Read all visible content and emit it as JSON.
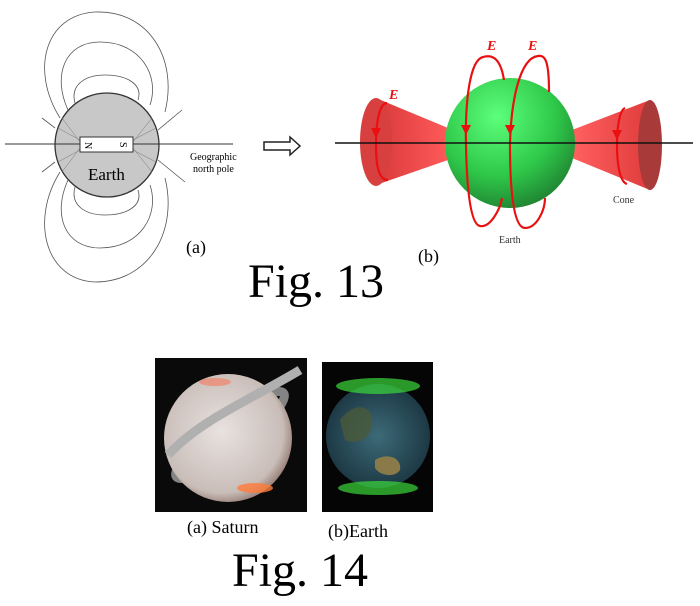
{
  "fig13": {
    "caption": "Fig. 13",
    "panel_a": {
      "label": "(a)",
      "earth_label": "Earth",
      "magnet_n": "N",
      "magnet_s": "S",
      "pole_label_line1": "Geographic",
      "pole_label_line2": "north pole"
    },
    "panel_b": {
      "label": "(b)",
      "field_label": "E",
      "earth_label": "Earth",
      "cone_label": "Cone",
      "colors": {
        "sphere": "#2ecc52",
        "cone": "#f04848",
        "field_loop": "#e81010"
      }
    }
  },
  "fig14": {
    "caption": "Fig. 14",
    "panel_a_label": "(a) Saturn",
    "panel_b_label": "(b)Earth"
  }
}
